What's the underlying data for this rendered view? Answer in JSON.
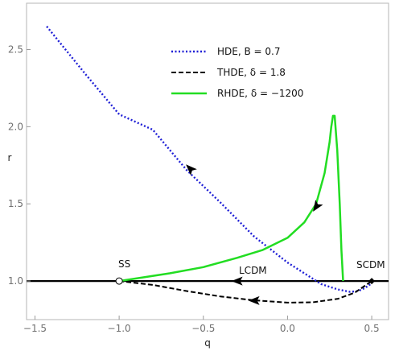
{
  "chart_data": {
    "type": "line",
    "title": "",
    "xlabel": "q",
    "ylabel": "r",
    "xlim": [
      -1.55,
      0.6
    ],
    "ylim": [
      0.75,
      2.8
    ],
    "x_ticks": [
      -1.5,
      -1.0,
      -0.5,
      0.0,
      0.5
    ],
    "x_tick_labels": [
      "−1.5",
      "−1.0",
      "−0.5",
      "0.0",
      "0.5"
    ],
    "y_ticks": [
      1.0,
      1.5,
      2.0,
      2.5
    ],
    "y_tick_labels": [
      "1.0",
      "1.5",
      "2.0",
      "2.5"
    ],
    "grid": false,
    "legend_position": "top-center",
    "series": [
      {
        "name": "HDE, B = 0.7",
        "color": "#1f1fd6",
        "style": "dotted",
        "x": [
          -1.43,
          -1.2,
          -1.0,
          -0.8,
          -0.6,
          -0.4,
          -0.2,
          0.0,
          0.1,
          0.2,
          0.3,
          0.37,
          0.42,
          0.46,
          0.5
        ],
        "y": [
          2.65,
          2.34,
          2.08,
          1.98,
          1.72,
          1.51,
          1.29,
          1.12,
          1.05,
          0.98,
          0.945,
          0.93,
          0.935,
          0.955,
          0.985
        ]
      },
      {
        "name": "THDE, δ = 1.8",
        "color": "#000000",
        "style": "dashed",
        "x": [
          -1.0,
          -0.8,
          -0.6,
          -0.4,
          -0.2,
          0.0,
          0.15,
          0.3,
          0.4,
          0.5
        ],
        "y": [
          1.0,
          0.975,
          0.935,
          0.9,
          0.875,
          0.86,
          0.862,
          0.885,
          0.925,
          1.0
        ]
      },
      {
        "name": "RHDE, δ = −1200",
        "color": "#22dd22",
        "style": "solid",
        "x": [
          -1.0,
          -0.7,
          -0.5,
          -0.3,
          -0.15,
          0.0,
          0.1,
          0.17,
          0.22,
          0.25,
          0.26,
          0.27,
          0.28,
          0.295,
          0.31,
          0.32,
          0.33
        ],
        "y": [
          1.0,
          1.05,
          1.09,
          1.15,
          1.2,
          1.28,
          1.38,
          1.5,
          1.7,
          1.9,
          2.0,
          2.07,
          2.07,
          1.85,
          1.5,
          1.2,
          1.0
        ]
      },
      {
        "name": "LCDM",
        "color": "#000000",
        "style": "solid",
        "x": [
          -1.55,
          0.6
        ],
        "y": [
          1.0,
          1.0
        ]
      }
    ],
    "arrows": [
      {
        "on": "HDE",
        "x": -0.58,
        "y": 1.73,
        "direction": "up-left"
      },
      {
        "on": "RHDE",
        "x": 0.17,
        "y": 1.48,
        "direction": "down-left"
      },
      {
        "on": "THDE",
        "x": -0.2,
        "y": 0.873,
        "direction": "left"
      },
      {
        "on": "LCDM",
        "x": -0.3,
        "y": 1.0,
        "direction": "left"
      }
    ],
    "points": [
      {
        "label": "SS",
        "x": -1.0,
        "y": 1.0,
        "marker": "open-circle"
      },
      {
        "label": "SCDM",
        "x": 0.5,
        "y": 1.0,
        "marker": "filled-diamond"
      }
    ],
    "annotations": [
      {
        "text": "SS",
        "x": -1.05,
        "y": 1.1
      },
      {
        "text": "LCDM",
        "x": -0.28,
        "y": 1.07
      },
      {
        "text": "SCDM",
        "x": 0.47,
        "y": 1.1
      }
    ]
  }
}
